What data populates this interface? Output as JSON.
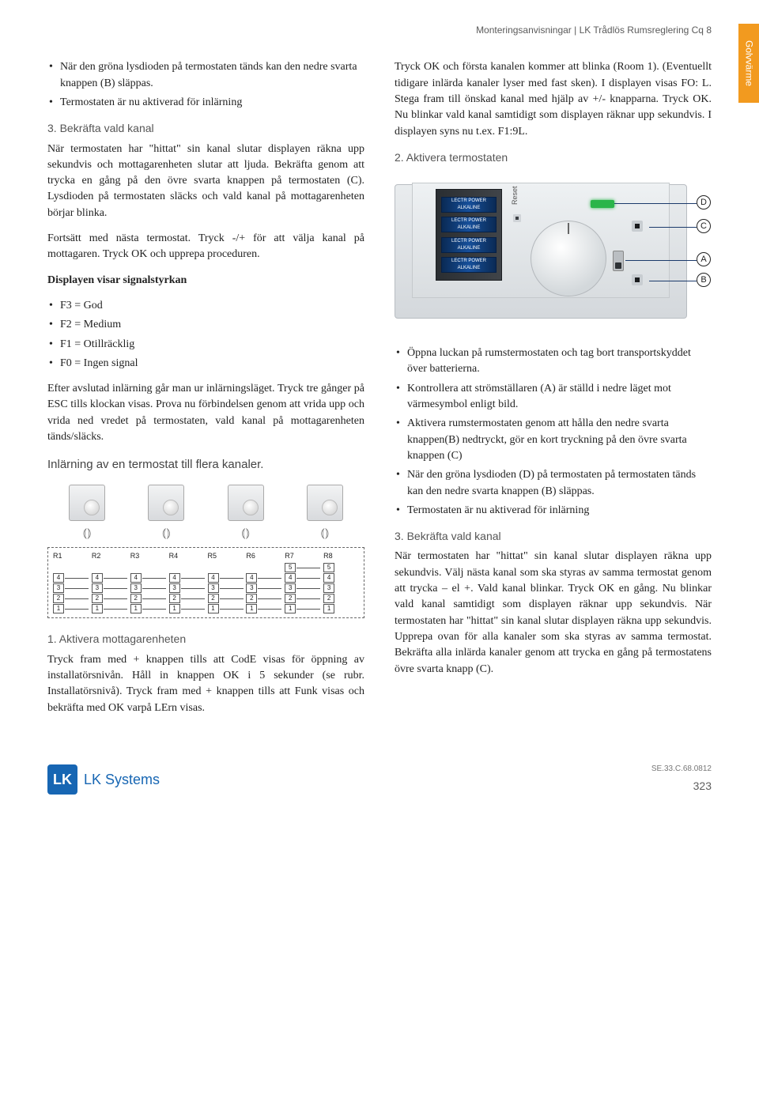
{
  "header": {
    "title": "Monteringsanvisningar | LK Trådlös Rumsreglering Cq 8"
  },
  "side_tab": "Golvvärme",
  "left": {
    "intro_bullets": [
      "När den gröna lysdioden på termostaten tänds kan den nedre svarta knappen (B) släppas.",
      "Termostaten är nu aktiverad för inlärning"
    ],
    "step3_title": "3. Bekräfta vald kanal",
    "step3_body": "När termostaten har \"hittat\" sin kanal slutar displayen räkna upp sekundvis och mottagarenheten slutar att ljuda. Bekräfta genom att trycka en gång på den övre svarta knappen på termostaten (C). Lysdioden på termostaten släcks och vald kanal på mottagarenheten börjar blinka.",
    "step3_body2": "Fortsätt med nästa termostat. Tryck -/+ för att välja kanal på mottagaren. Tryck OK och upprepa proceduren.",
    "signal_lead": "Displayen visar signalstyrkan",
    "signal_bullets": [
      "F3 = God",
      "F2 = Medium",
      "F1 = Otillräcklig",
      "F0 = Ingen signal"
    ],
    "after_body": "Efter avslutad inlärning går man ur inlärningsläget. Tryck tre gånger på ESC tills klockan visas. Prova nu förbindelsen genom att vrida upp och vrida ned vredet på termostaten, vald kanal på mottagarenheten tänds/släcks.",
    "multi_title": "Inlärning av en termostat till flera kanaler.",
    "receiver_labels": [
      "R1",
      "R2",
      "R3",
      "R4",
      "R5",
      "R6",
      "R7",
      "R8"
    ],
    "act1_title": "1. Aktivera mottagarenheten",
    "act1_body": "Tryck fram med + knappen tills att CodE visas för öppning av installatörsnivån. Håll in knappen OK i 5 sekunder (se rubr. Installatörsnivå). Tryck fram med + knappen tills att Funk visas och bekräfta med OK varpå LErn visas."
  },
  "right": {
    "top_body": "Tryck OK och första kanalen kommer att blinka (Room 1). (Eventuellt tidigare inlärda kanaler lyser med fast sken). I displayen visas FO: L. Stega fram till önskad kanal med hjälp av +/- knapparna. Tryck OK. Nu blinkar vald kanal samtidigt som displayen räknar upp sekundvis. I displayen syns nu t.ex. F1:9L.",
    "act2_title": "2. Aktivera termostaten",
    "callouts": {
      "D": "D",
      "C": "C",
      "A": "A",
      "B": "B"
    },
    "thermo": {
      "reset": "Reset",
      "batt": "LECTR POWER ALKALINE"
    },
    "bullets2": [
      "Öppna luckan på rumstermostaten och tag bort transportskyddet över batterierna.",
      "Kontrollera att strömställaren (A) är ställd i nedre läget mot värmesymbol enligt bild.",
      "Aktivera rumstermostaten genom att hålla den nedre svarta knappen(B) nedtryckt, gör en kort tryckning på den övre svarta knappen (C)",
      "När den gröna lysdioden (D) på termostaten på termostaten tänds kan den nedre svarta knappen (B) släppas.",
      "Termostaten är nu aktiverad för inlärning"
    ],
    "step3_title": "3. Bekräfta vald kanal",
    "step3_body": "När termostaten har \"hittat\" sin kanal slutar displayen räkna upp sekundvis. Välj nästa kanal som ska styras av samma termostat genom att trycka – el +. Vald kanal blinkar. Tryck OK en gång. Nu blinkar vald kanal samtidigt som displayen räknar upp sekundvis. När termostaten har \"hittat\" sin kanal slutar displayen räkna upp sekundvis. Upprepa ovan för alla kanaler som ska styras av samma termostat. Bekräfta alla inlärda kanaler genom att trycka en gång på termostatens övre svarta knapp (C)."
  },
  "footer": {
    "logo_mark": "LK",
    "logo_text": "LK Systems",
    "code": "SE.33.C.68.0812",
    "page": "323"
  },
  "colors": {
    "brand_orange": "#f29a1f",
    "brand_blue": "#1766b3",
    "led_green": "#2ab54a",
    "callout_line": "#1b3a6b"
  }
}
